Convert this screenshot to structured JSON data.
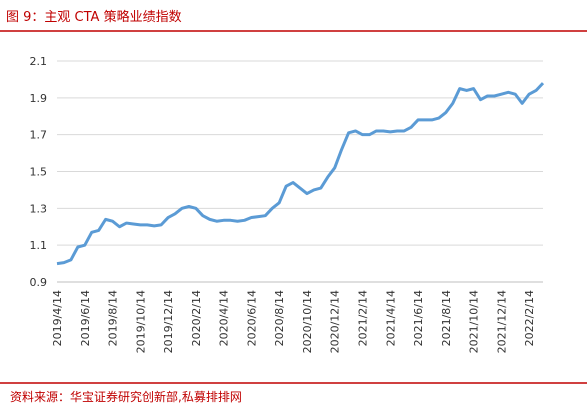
{
  "chart_data": {
    "type": "line",
    "title": "图 9：主观 CTA 策略业绩指数",
    "source": "资料来源：华宝证券研究创新部,私募排排网",
    "categories": [
      "2019/4/14",
      null,
      null,
      null,
      "2019/6/14",
      null,
      null,
      null,
      "2019/8/14",
      null,
      null,
      null,
      "2019/10/14",
      null,
      null,
      null,
      "2019/12/14",
      null,
      null,
      null,
      "2020/2/14",
      null,
      null,
      null,
      "2020/4/14",
      null,
      null,
      null,
      "2020/6/14",
      null,
      null,
      null,
      "2020/8/14",
      null,
      null,
      null,
      "2020/10/14",
      null,
      null,
      null,
      "2020/12/14",
      null,
      null,
      null,
      "2021/2/14",
      null,
      null,
      null,
      "2021/4/14",
      null,
      null,
      null,
      "2021/6/14",
      null,
      null,
      null,
      "2021/8/14",
      null,
      null,
      null,
      "2021/10/14",
      null,
      null,
      null,
      "2021/12/14",
      null,
      null,
      null,
      "2022/2/14",
      null,
      null
    ],
    "series": [
      {
        "name": "主观CTA策略业绩指数",
        "color": "#5b9bd5",
        "values": [
          1.0,
          1.005,
          1.02,
          1.09,
          1.1,
          1.17,
          1.18,
          1.24,
          1.23,
          1.2,
          1.22,
          1.215,
          1.21,
          1.21,
          1.205,
          1.21,
          1.25,
          1.27,
          1.3,
          1.31,
          1.3,
          1.26,
          1.24,
          1.23,
          1.235,
          1.235,
          1.23,
          1.235,
          1.25,
          1.255,
          1.26,
          1.3,
          1.33,
          1.42,
          1.44,
          1.41,
          1.38,
          1.4,
          1.41,
          1.47,
          1.52,
          1.62,
          1.71,
          1.72,
          1.7,
          1.7,
          1.72,
          1.72,
          1.715,
          1.72,
          1.72,
          1.74,
          1.78,
          1.78,
          1.78,
          1.79,
          1.82,
          1.87,
          1.95,
          1.94,
          1.95,
          1.89,
          1.91,
          1.91,
          1.92,
          1.93,
          1.92,
          1.87,
          1.92,
          1.94,
          1.98
        ]
      }
    ],
    "ylim": [
      0.9,
      2.1
    ],
    "yticks": [
      0.9,
      1.1,
      1.3,
      1.5,
      1.7,
      1.9,
      2.1
    ],
    "grid": true
  }
}
